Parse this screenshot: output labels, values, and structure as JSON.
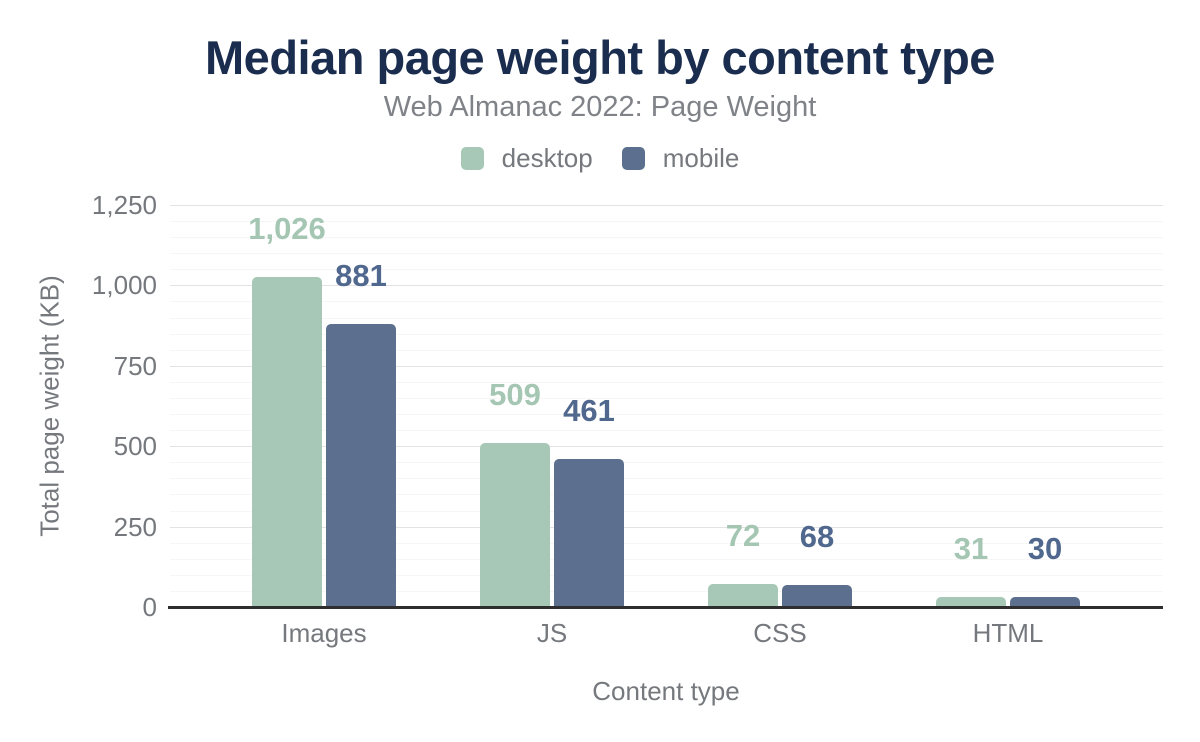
{
  "header": {
    "title": "Median page weight by content type",
    "subtitle": "Web Almanac 2022: Page Weight"
  },
  "chart_data": {
    "type": "bar",
    "title": "Median page weight by content type",
    "subtitle": "Web Almanac 2022: Page Weight",
    "categories": [
      "Images",
      "JS",
      "CSS",
      "HTML"
    ],
    "series": [
      {
        "name": "desktop",
        "color": "#a7c8b6",
        "label_color": "#a4c6b3",
        "values": [
          1026,
          509,
          72,
          31
        ],
        "value_labels": [
          "1,026",
          "509",
          "72",
          "31"
        ]
      },
      {
        "name": "mobile",
        "color": "#5d6f8e",
        "label_color": "#50688e",
        "values": [
          881,
          461,
          68,
          30
        ],
        "value_labels": [
          "881",
          "461",
          "68",
          "30"
        ]
      }
    ],
    "xlabel": "Content type",
    "ylabel": "Total page weight (KB)",
    "ylim": [
      0,
      1250
    ],
    "yticks": [
      {
        "value": 0,
        "label": "0"
      },
      {
        "value": 250,
        "label": "250"
      },
      {
        "value": 500,
        "label": "500"
      },
      {
        "value": 750,
        "label": "750"
      },
      {
        "value": 1000,
        "label": "1,000"
      },
      {
        "value": 1250,
        "label": "1,250"
      }
    ],
    "grid": {
      "on": true,
      "major_step": 250,
      "minor_step": 50,
      "major_color": "#e3e3e3",
      "minor_color": "#f6f6f6"
    },
    "legend_position": "top",
    "colors": {
      "title": "#1b2d4f",
      "subtitle": "#7f8287",
      "axis_text": "#75787d",
      "axis_line": "#2e2e2e",
      "background": "#ffffff"
    }
  }
}
